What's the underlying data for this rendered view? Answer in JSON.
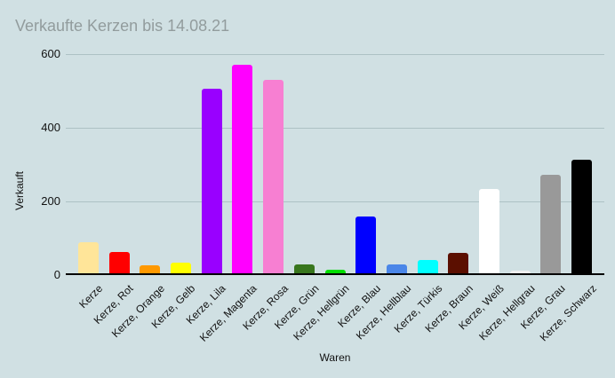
{
  "chart_data": {
    "type": "bar",
    "title": "Verkaufte Kerzen bis 14.08.21",
    "xlabel": "Waren",
    "ylabel": "Verkauft",
    "ylim": [
      0,
      600
    ],
    "yticks": [
      0,
      200,
      400,
      600
    ],
    "grid": true,
    "legend": "none",
    "categories": [
      "Kerze",
      "Kerze, Rot",
      "Kerze, Orange",
      "Kerze, Gelb",
      "Kerze, Lila",
      "Kerze, Magenta",
      "Kerze, Rosa",
      "Kerze, Grün",
      "Kerze, Hellgrün",
      "Kerze, Blau",
      "Kerze, Hellblau",
      "Kerze, Türkis",
      "Kerze, Braun",
      "Kerze, Weiß",
      "Kerze, Hellgrau",
      "Kerze, Grau",
      "Kerze, Schwarz"
    ],
    "values": [
      88,
      62,
      26,
      34,
      505,
      572,
      529,
      30,
      14,
      158,
      30,
      40,
      60,
      234,
      12,
      272,
      314
    ],
    "bar_colors": [
      "#ffe599",
      "#ff0000",
      "#ff9900",
      "#ffff00",
      "#9900ff",
      "#ff00ff",
      "#f77fd2",
      "#38761d",
      "#00dd00",
      "#0000ff",
      "#4a86e8",
      "#00ffff",
      "#5b0f00",
      "#ffffff",
      "#eeeeee",
      "#999999",
      "#000000"
    ]
  },
  "colors": {
    "background": "#d0e0e3",
    "title_text": "#929c9d",
    "axis_text": "#111111",
    "gridline": "#adc1c4",
    "baseline": "#000000"
  }
}
